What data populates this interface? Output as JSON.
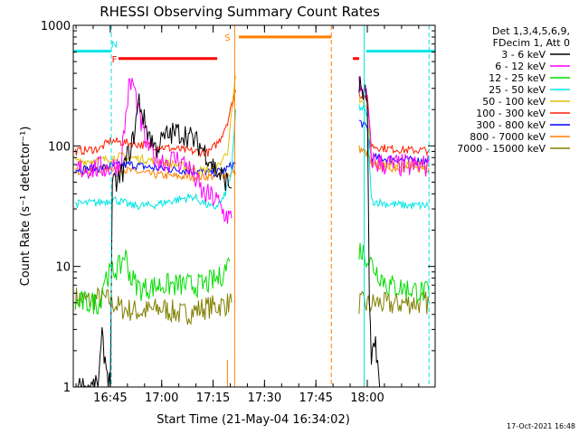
{
  "chart_data": {
    "type": "line",
    "title": "RHESSI Observing Summary Count Rates",
    "xlabel": "Start Time (21-May-04 16:34:02)",
    "ylabel": "Count Rate (s⁻¹ detector⁻¹)",
    "yscale": "log",
    "ylim": [
      1,
      1000
    ],
    "xlim_minutes": [
      16.57,
      18.33
    ],
    "x_ticks": [
      {
        "t": 16.75,
        "label": "16:45"
      },
      {
        "t": 17.0,
        "label": "17:00"
      },
      {
        "t": 17.25,
        "label": "17:15"
      },
      {
        "t": 17.5,
        "label": "17:30"
      },
      {
        "t": 17.75,
        "label": "17:45"
      },
      {
        "t": 18.0,
        "label": "18:00"
      }
    ],
    "y_ticks": [
      {
        "v": 1,
        "label": "1"
      },
      {
        "v": 10,
        "label": "10"
      },
      {
        "v": 100,
        "label": "100"
      },
      {
        "v": 1000,
        "label": "1000"
      }
    ],
    "legend": {
      "placement": "right",
      "header": [
        "Det 1,3,4,5,6,9,",
        "FDecim 1, Att 0"
      ]
    },
    "series": [
      {
        "name": "3 - 6 keV",
        "color": "#000000",
        "points": [
          [
            16.58,
            1
          ],
          [
            16.69,
            1
          ],
          [
            16.71,
            2.5
          ],
          [
            16.73,
            1.5
          ],
          [
            16.75,
            1
          ],
          [
            16.76,
            45
          ],
          [
            16.8,
            55
          ],
          [
            16.86,
            110
          ],
          [
            16.89,
            240
          ],
          [
            16.92,
            150
          ],
          [
            16.97,
            95
          ],
          [
            17.02,
            120
          ],
          [
            17.07,
            130
          ],
          [
            17.12,
            125
          ],
          [
            17.16,
            110
          ],
          [
            17.2,
            95
          ],
          [
            17.24,
            75
          ],
          [
            17.27,
            60
          ],
          [
            17.3,
            55
          ],
          [
            17.34,
            45
          ],
          null,
          [
            17.96,
            320
          ],
          [
            17.98,
            280
          ],
          [
            18.0,
            250
          ],
          [
            18.01,
            5
          ],
          [
            18.02,
            1.5
          ],
          [
            18.04,
            2.5
          ],
          [
            18.06,
            1
          ]
        ]
      },
      {
        "name": "6 - 12 keV",
        "color": "#ff00ff",
        "points": [
          [
            16.58,
            64
          ],
          [
            16.75,
            66
          ],
          [
            16.8,
            70
          ],
          [
            16.84,
            300
          ],
          [
            16.86,
            340
          ],
          [
            16.89,
            180
          ],
          [
            16.92,
            110
          ],
          [
            16.97,
            80
          ],
          [
            17.02,
            75
          ],
          [
            17.07,
            78
          ],
          [
            17.12,
            70
          ],
          [
            17.16,
            55
          ],
          [
            17.2,
            40
          ],
          [
            17.24,
            38
          ],
          [
            17.27,
            35
          ],
          [
            17.3,
            28
          ],
          [
            17.34,
            25
          ],
          null,
          [
            17.96,
            330
          ],
          [
            17.98,
            290
          ],
          [
            18.0,
            230
          ],
          [
            18.02,
            80
          ],
          [
            18.04,
            72
          ],
          [
            18.1,
            70
          ],
          [
            18.2,
            68
          ],
          [
            18.3,
            68
          ]
        ]
      },
      {
        "name": "12 - 25 keV",
        "color": "#00dd00",
        "points": [
          [
            16.58,
            5
          ],
          [
            16.7,
            5
          ],
          [
            16.72,
            8
          ],
          [
            16.76,
            9
          ],
          [
            16.8,
            10
          ],
          [
            16.82,
            13
          ],
          [
            16.85,
            8
          ],
          [
            16.9,
            6.5
          ],
          [
            17.0,
            7
          ],
          [
            17.1,
            7
          ],
          [
            17.2,
            7
          ],
          [
            17.28,
            8
          ],
          [
            17.33,
            11
          ],
          null,
          [
            17.96,
            14
          ],
          [
            18.0,
            12
          ],
          [
            18.03,
            10
          ],
          [
            18.1,
            7
          ],
          [
            18.2,
            6.5
          ],
          [
            18.3,
            6
          ]
        ]
      },
      {
        "name": "25 - 50 keV",
        "color": "#00e5e5",
        "points": [
          [
            16.58,
            33
          ],
          [
            16.7,
            34
          ],
          [
            16.77,
            36
          ],
          [
            16.85,
            32
          ],
          [
            16.95,
            32
          ],
          [
            17.05,
            35
          ],
          [
            17.15,
            38
          ],
          [
            17.2,
            34
          ],
          [
            17.25,
            30
          ],
          [
            17.3,
            36
          ],
          [
            17.34,
            60
          ],
          [
            17.36,
            200
          ],
          null,
          [
            17.96,
            210
          ],
          [
            17.98,
            200
          ],
          [
            18.0,
            180
          ],
          [
            18.02,
            35
          ],
          [
            18.1,
            33
          ],
          [
            18.2,
            32
          ],
          [
            18.3,
            32
          ]
        ]
      },
      {
        "name": "50 - 100 keV",
        "color": "#e0c000",
        "points": [
          [
            16.58,
            74
          ],
          [
            16.7,
            76
          ],
          [
            16.8,
            82
          ],
          [
            16.9,
            78
          ],
          [
            17.0,
            74
          ],
          [
            17.1,
            68
          ],
          [
            17.2,
            62
          ],
          [
            17.27,
            66
          ],
          [
            17.32,
            90
          ],
          [
            17.36,
            380
          ],
          null,
          [
            17.96,
            240
          ],
          [
            17.98,
            220
          ],
          [
            18.0,
            200
          ],
          [
            18.02,
            72
          ],
          [
            18.1,
            70
          ],
          [
            18.2,
            70
          ],
          [
            18.3,
            70
          ]
        ]
      },
      {
        "name": "100 - 300 keV",
        "color": "#ff2000",
        "points": [
          [
            16.58,
            90
          ],
          [
            16.7,
            95
          ],
          [
            16.75,
            110
          ],
          [
            16.85,
            105
          ],
          [
            16.95,
            100
          ],
          [
            17.05,
            95
          ],
          [
            17.15,
            90
          ],
          [
            17.23,
            88
          ],
          [
            17.28,
            110
          ],
          [
            17.32,
            160
          ],
          [
            17.36,
            290
          ],
          null,
          [
            17.96,
            270
          ],
          [
            17.98,
            260
          ],
          [
            18.0,
            245
          ],
          [
            18.02,
            100
          ],
          [
            18.1,
            95
          ],
          [
            18.2,
            92
          ],
          [
            18.3,
            92
          ]
        ]
      },
      {
        "name": "300 - 800 keV",
        "color": "#0000ff",
        "points": [
          [
            16.58,
            64
          ],
          [
            16.7,
            65
          ],
          [
            16.75,
            68
          ],
          [
            16.85,
            70
          ],
          [
            16.95,
            66
          ],
          [
            17.05,
            64
          ],
          [
            17.15,
            62
          ],
          [
            17.25,
            60
          ],
          [
            17.3,
            62
          ],
          [
            17.36,
            72
          ],
          null,
          [
            17.96,
            160
          ],
          [
            17.98,
            150
          ],
          [
            18.0,
            140
          ],
          [
            18.02,
            80
          ],
          [
            18.1,
            78
          ],
          [
            18.2,
            76
          ],
          [
            18.3,
            75
          ]
        ]
      },
      {
        "name": "800 - 7000 keV",
        "color": "#ff8000",
        "points": [
          [
            16.58,
            62
          ],
          [
            16.7,
            64
          ],
          [
            16.75,
            66
          ],
          [
            16.85,
            62
          ],
          [
            16.95,
            58
          ],
          [
            17.05,
            56
          ],
          [
            17.15,
            55
          ],
          [
            17.25,
            56
          ],
          [
            17.3,
            57
          ],
          [
            17.36,
            60
          ],
          null,
          [
            17.96,
            95
          ],
          [
            17.98,
            90
          ],
          [
            18.0,
            85
          ],
          [
            18.02,
            70
          ],
          [
            18.1,
            66
          ],
          [
            18.2,
            65
          ],
          [
            18.3,
            65
          ]
        ]
      },
      {
        "name": "7000 - 15000 keV",
        "color": "#808000",
        "points": [
          [
            16.58,
            5.5
          ],
          [
            16.65,
            5.2
          ],
          [
            16.7,
            5.5
          ],
          [
            16.75,
            5.2
          ],
          [
            16.8,
            4.5
          ],
          [
            16.9,
            4.2
          ],
          [
            17.0,
            4.5
          ],
          [
            17.1,
            4
          ],
          [
            17.2,
            4.5
          ],
          [
            17.3,
            4.8
          ],
          [
            17.34,
            5
          ],
          null,
          [
            17.96,
            5
          ],
          [
            18.0,
            4.8
          ],
          [
            18.05,
            5
          ],
          [
            18.1,
            4.8
          ],
          [
            18.2,
            5
          ],
          [
            18.3,
            5
          ]
        ]
      }
    ],
    "annotations": [
      {
        "label": "N",
        "color": "#00e5e5",
        "line_t": 16.755,
        "text_t": 16.77,
        "bar_from": 16.57,
        "bar_to": 16.755,
        "bar_y": 610,
        "dashed_edge": true
      },
      {
        "label": "N",
        "color": "#00e5e5",
        "line_t": 17.985,
        "text_t": null,
        "bar_from": 17.995,
        "bar_to": 18.33,
        "bar_y": 610,
        "dashed_edge_t": 18.3
      },
      {
        "label": "F",
        "color": "#ff0000",
        "text_t": 16.77,
        "bar_from": 16.79,
        "bar_to": 17.27,
        "bar_y": 530
      },
      {
        "label": "",
        "color": "#ff0000",
        "bar_from": 17.93,
        "bar_to": 17.96,
        "bar_y": 530
      },
      {
        "label": "S",
        "color": "#ff8000",
        "text_t": 17.32,
        "bar_from": 17.375,
        "bar_to": 17.825,
        "bar_y": 800,
        "line_t": 17.355,
        "dashed_t": 17.825
      }
    ],
    "footer_date": "17-Oct-2021 16:48"
  }
}
